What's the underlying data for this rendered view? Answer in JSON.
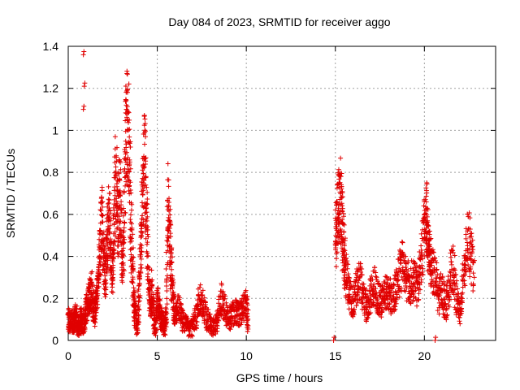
{
  "chart_data": {
    "type": "scatter",
    "title": "Day 084 of 2023, SRMTID for receiver aggo",
    "xlabel": "GPS time / hours",
    "ylabel": "SRMTID / TECUs",
    "xlim": [
      0,
      24
    ],
    "ylim": [
      0,
      1.4
    ],
    "xticks": [
      0,
      5,
      10,
      15,
      20
    ],
    "yticks": [
      0,
      0.2,
      0.4,
      0.6,
      0.8,
      1,
      1.2,
      1.4
    ],
    "ytick_labels": [
      "0",
      "0.2",
      "0.4",
      "0.6",
      "0.8",
      "1",
      "1.2",
      "1.4"
    ],
    "grid": true,
    "marker": "plus",
    "color": "#e00000",
    "series": [
      {
        "name": "SRMTID",
        "segments": [
          {
            "x": [
              0.0,
              0.1,
              0.2,
              0.3,
              0.4,
              0.5,
              0.6,
              0.7,
              0.8,
              0.9,
              1.0,
              1.1,
              1.2,
              1.3,
              1.4,
              1.5,
              1.6,
              1.7,
              1.8,
              1.9,
              2.0,
              2.1,
              2.2,
              2.3,
              2.4,
              2.5,
              2.6,
              2.7,
              2.8,
              2.9,
              3.0,
              3.1,
              3.2,
              3.3,
              3.4,
              3.5,
              3.6,
              3.7,
              3.8,
              3.9,
              4.0,
              4.1,
              4.2,
              4.3,
              4.4,
              4.5,
              4.6,
              4.7,
              4.8,
              4.9,
              5.0,
              5.1,
              5.2,
              5.3,
              5.4,
              5.5,
              5.6,
              5.7,
              5.8,
              5.9,
              6.0,
              6.2,
              6.4,
              6.6,
              6.8,
              7.0,
              7.2,
              7.4,
              7.6,
              7.8,
              8.0,
              8.2,
              8.4,
              8.6,
              8.8,
              9.0,
              9.2,
              9.4,
              9.6,
              9.8,
              10.0,
              10.1
            ],
            "y": [
              0.12,
              0.08,
              0.1,
              0.06,
              0.13,
              0.09,
              0.05,
              0.11,
              0.07,
              0.09,
              0.15,
              0.18,
              0.2,
              0.25,
              0.16,
              0.12,
              0.22,
              0.3,
              0.45,
              0.6,
              0.35,
              0.28,
              0.5,
              0.58,
              0.4,
              0.32,
              0.62,
              0.8,
              0.55,
              0.7,
              0.42,
              0.38,
              0.9,
              1.05,
              0.95,
              0.6,
              0.35,
              0.18,
              0.1,
              0.06,
              0.3,
              0.5,
              0.75,
              0.85,
              0.6,
              0.3,
              0.15,
              0.25,
              0.1,
              0.05,
              0.2,
              0.15,
              0.1,
              0.08,
              0.06,
              0.12,
              0.7,
              0.5,
              0.3,
              0.18,
              0.12,
              0.15,
              0.1,
              0.08,
              0.05,
              0.07,
              0.12,
              0.2,
              0.15,
              0.1,
              0.07,
              0.05,
              0.12,
              0.2,
              0.15,
              0.1,
              0.12,
              0.14,
              0.13,
              0.15,
              0.18,
              0.07
            ]
          },
          {
            "x": [
              15.0,
              15.1,
              15.2,
              15.3,
              15.4,
              15.5,
              15.6,
              15.8,
              16.0,
              16.2,
              16.4,
              16.6,
              16.8,
              17.0,
              17.2,
              17.4,
              17.6,
              17.8,
              18.0,
              18.2,
              18.4,
              18.6,
              18.8,
              19.0,
              19.2,
              19.4,
              19.6,
              19.8,
              20.0,
              20.1,
              20.2,
              20.3,
              20.4,
              20.6,
              20.8,
              21.0,
              21.2,
              21.4,
              21.6,
              21.8,
              22.0,
              22.2,
              22.4,
              22.6,
              22.8
            ],
            "y": [
              0.45,
              0.55,
              0.65,
              0.7,
              0.5,
              0.4,
              0.3,
              0.22,
              0.18,
              0.25,
              0.28,
              0.2,
              0.15,
              0.22,
              0.26,
              0.2,
              0.18,
              0.24,
              0.22,
              0.2,
              0.25,
              0.32,
              0.38,
              0.3,
              0.26,
              0.3,
              0.25,
              0.35,
              0.55,
              0.6,
              0.45,
              0.42,
              0.35,
              0.3,
              0.2,
              0.25,
              0.15,
              0.28,
              0.35,
              0.2,
              0.12,
              0.3,
              0.5,
              0.42,
              0.3
            ]
          }
        ],
        "outliers": [
          {
            "x": 0.85,
            "y": 1.36
          },
          {
            "x": 0.9,
            "y": 1.21
          },
          {
            "x": 0.85,
            "y": 1.1
          },
          {
            "x": 14.9,
            "y": 0.0
          },
          {
            "x": 20.6,
            "y": 0.0
          }
        ]
      }
    ]
  }
}
